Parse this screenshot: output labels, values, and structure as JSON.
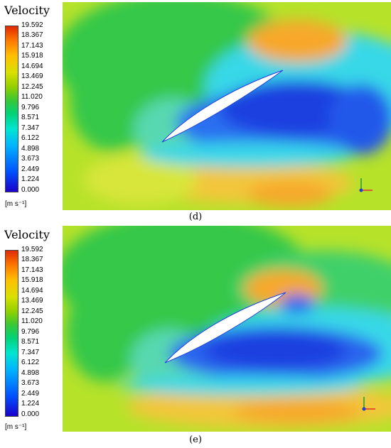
{
  "panels": [
    {
      "title": "Velocity",
      "ticks": [
        "19.592",
        "18.367",
        "17.143",
        "15.918",
        "14.694",
        "13.469",
        "12.245",
        "11.020",
        "9.796",
        "8.571",
        "7.347",
        "6.122",
        "4.898",
        "3.673",
        "2.449",
        "1.224",
        "0.000"
      ],
      "unit": "[m s⁻¹]",
      "caption": "(d)"
    },
    {
      "title": "Velocity",
      "ticks": [
        "19.592",
        "18.367",
        "17.143",
        "15.918",
        "14.694",
        "13.469",
        "12.245",
        "11.020",
        "9.796",
        "8.571",
        "7.347",
        "6.122",
        "4.898",
        "3.673",
        "2.449",
        "1.224",
        "0.000"
      ],
      "unit": "[m s⁻¹]",
      "caption": "(e)"
    }
  ],
  "colors": {
    "blue": "#1f3fe0",
    "cyan": "#39d8e8",
    "green": "#35c84a",
    "lime": "#b6e22a",
    "yellow": "#f3e53a",
    "orange": "#f7a82b"
  }
}
